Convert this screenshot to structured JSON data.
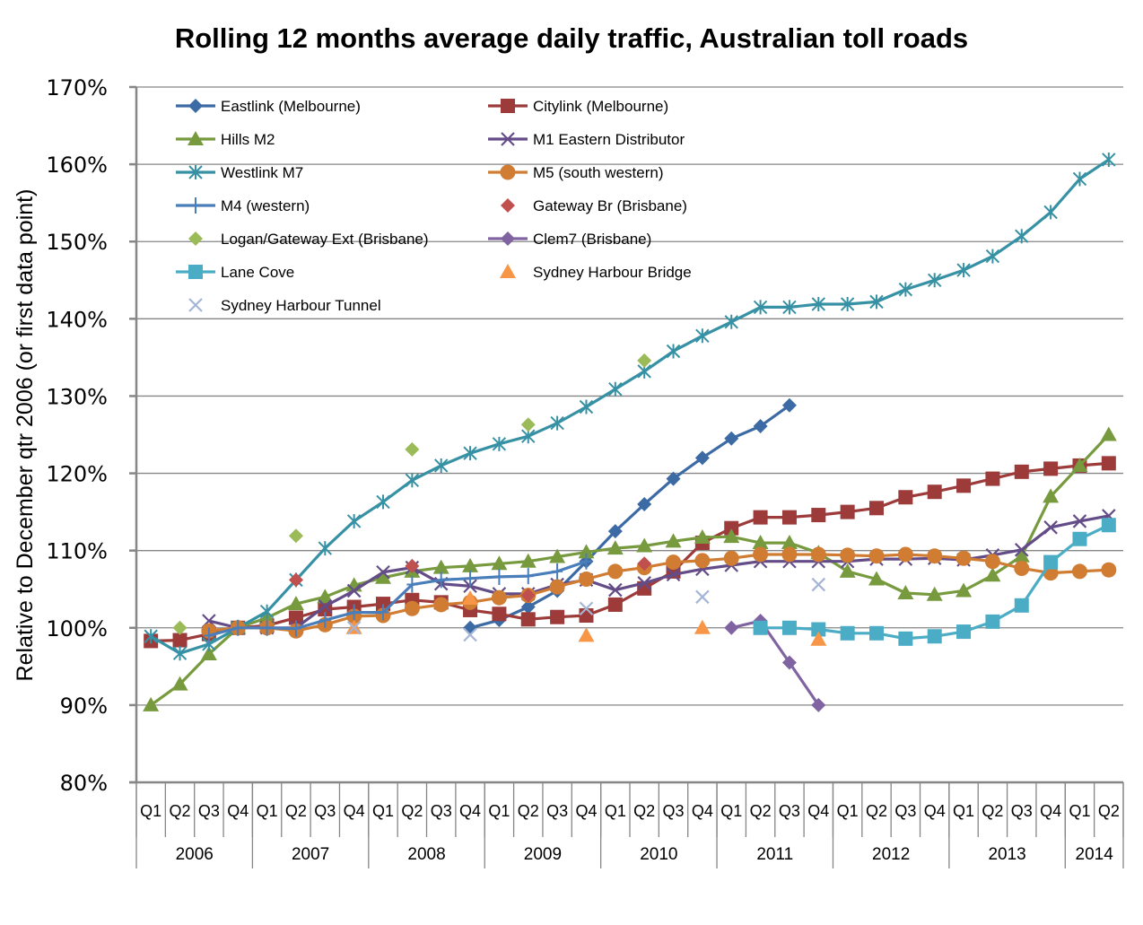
{
  "chart_data": {
    "type": "line",
    "title": "Rolling 12 months average daily traffic, Australian toll roads",
    "xlabel": "",
    "ylabel": "Relative to December  qtr 2006 (or first data point)",
    "ylim": [
      80,
      170
    ],
    "yticks": [
      "80%",
      "90%",
      "100%",
      "110%",
      "120%",
      "130%",
      "140%",
      "150%",
      "160%",
      "170%"
    ],
    "ytick_values": [
      80,
      90,
      100,
      110,
      120,
      130,
      140,
      150,
      160,
      170
    ],
    "grid": true,
    "legend_position": "top-left",
    "x": [
      "2006 Q1",
      "2006 Q2",
      "2006 Q3",
      "2006 Q4",
      "2007 Q1",
      "2007 Q2",
      "2007 Q3",
      "2007 Q4",
      "2008 Q1",
      "2008 Q2",
      "2008 Q3",
      "2008 Q4",
      "2009 Q1",
      "2009 Q2",
      "2009 Q3",
      "2009 Q4",
      "2010 Q1",
      "2010 Q2",
      "2010 Q3",
      "2010 Q4",
      "2011 Q1",
      "2011 Q2",
      "2011 Q3",
      "2011 Q4",
      "2012 Q1",
      "2012 Q2",
      "2012 Q3",
      "2012 Q4",
      "2013 Q1",
      "2013 Q2",
      "2013 Q3",
      "2013 Q4",
      "2014 Q1",
      "2014 Q2"
    ],
    "quarter_labels": [
      "Q1",
      "Q2",
      "Q3",
      "Q4",
      "Q1",
      "Q2",
      "Q3",
      "Q4",
      "Q1",
      "Q2",
      "Q3",
      "Q4",
      "Q1",
      "Q2",
      "Q3",
      "Q4",
      "Q1",
      "Q2",
      "Q3",
      "Q4",
      "Q1",
      "Q2",
      "Q3",
      "Q4",
      "Q1",
      "Q2",
      "Q3",
      "Q4",
      "Q1",
      "Q2",
      "Q3",
      "Q4",
      "Q1",
      "Q2"
    ],
    "year_groups": [
      {
        "label": "2006",
        "quarters": 4
      },
      {
        "label": "2007",
        "quarters": 4
      },
      {
        "label": "2008",
        "quarters": 4
      },
      {
        "label": "2009",
        "quarters": 4
      },
      {
        "label": "2010",
        "quarters": 4
      },
      {
        "label": "2011",
        "quarters": 4
      },
      {
        "label": "2012",
        "quarters": 4
      },
      {
        "label": "2013",
        "quarters": 4
      },
      {
        "label": "2014",
        "quarters": 2
      }
    ],
    "series": [
      {
        "name": "Eastlink (Melbourne)",
        "color": "#3c6aa5",
        "marker": "diamond",
        "line": true,
        "values": [
          null,
          null,
          null,
          null,
          null,
          null,
          null,
          null,
          null,
          null,
          null,
          100.0,
          101.0,
          102.7,
          104.8,
          108.6,
          112.5,
          116.0,
          119.3,
          122.0,
          124.5,
          126.1,
          128.8,
          null,
          null,
          null,
          null,
          null,
          null,
          null,
          null,
          null,
          null,
          null
        ]
      },
      {
        "name": "Citylink (Melbourne)",
        "color": "#9c3b3a",
        "marker": "square",
        "line": true,
        "values": [
          98.3,
          98.4,
          99.2,
          100.0,
          100.3,
          101.3,
          102.4,
          102.7,
          103.1,
          103.6,
          103.3,
          102.3,
          101.8,
          101.1,
          101.4,
          101.6,
          103.0,
          105.1,
          107.3,
          111.0,
          112.9,
          114.3,
          114.3,
          114.6,
          115.0,
          115.5,
          116.9,
          117.6,
          118.4,
          119.3,
          120.2,
          120.6,
          121.0,
          121.3
        ]
      },
      {
        "name": "Hills M2",
        "color": "#779a3f",
        "marker": "triangle",
        "line": true,
        "values": [
          90.0,
          92.7,
          96.6,
          100.0,
          101.3,
          103.1,
          104.0,
          105.5,
          106.5,
          107.3,
          107.8,
          108.0,
          108.3,
          108.6,
          109.2,
          109.8,
          110.3,
          110.6,
          111.2,
          111.7,
          111.8,
          111.0,
          111.0,
          109.7,
          107.3,
          106.3,
          104.5,
          104.3,
          104.8,
          106.8,
          109.3,
          117.0,
          121.0,
          125.0
        ]
      },
      {
        "name": "M1 Eastern Distributor",
        "color": "#634c87",
        "marker": "x",
        "line": true,
        "values": [
          null,
          null,
          100.9,
          100.0,
          100.0,
          100.0,
          102.8,
          104.8,
          107.2,
          107.8,
          105.7,
          105.4,
          104.4,
          104.4,
          105.6,
          106.2,
          104.9,
          105.8,
          106.9,
          107.6,
          108.1,
          108.6,
          108.6,
          108.6,
          108.6,
          108.9,
          108.9,
          109.0,
          108.8,
          109.4,
          110.1,
          113.0,
          113.8,
          114.5
        ]
      },
      {
        "name": "Westlink M7",
        "color": "#3791a4",
        "marker": "star",
        "line": true,
        "values": [
          98.9,
          96.7,
          97.9,
          100.0,
          102.1,
          106.2,
          110.3,
          113.8,
          116.3,
          119.1,
          121.0,
          122.6,
          123.8,
          124.8,
          126.5,
          128.6,
          130.9,
          133.2,
          135.8,
          137.8,
          139.6,
          141.5,
          141.5,
          141.9,
          141.9,
          142.2,
          143.8,
          145.0,
          146.3,
          148.1,
          150.7,
          153.8,
          158.1,
          160.6
        ]
      },
      {
        "name": "M5 (south western)",
        "color": "#d07d33",
        "marker": "circle",
        "line": true,
        "values": [
          null,
          null,
          99.6,
          100.0,
          100.0,
          99.6,
          100.4,
          101.5,
          101.6,
          102.5,
          103.0,
          103.3,
          103.9,
          104.2,
          105.3,
          106.3,
          107.3,
          107.8,
          108.5,
          108.7,
          109.0,
          109.5,
          109.5,
          109.5,
          109.4,
          109.3,
          109.5,
          109.3,
          109.0,
          108.6,
          107.7,
          107.1,
          107.3,
          107.5
        ]
      },
      {
        "name": "M4 (western)",
        "color": "#4a7ebb",
        "marker": "plus",
        "line": true,
        "values": [
          null,
          null,
          99.0,
          100.0,
          100.0,
          99.9,
          101.0,
          102.0,
          102.0,
          105.6,
          106.2,
          106.4,
          106.6,
          106.7,
          107.3,
          108.6,
          null,
          null,
          null,
          null,
          null,
          null,
          null,
          null,
          null,
          null,
          null,
          null,
          null,
          null,
          null,
          null,
          null,
          null
        ]
      },
      {
        "name": "Gateway Br (Brisbane)",
        "color": "#c0504d",
        "marker": "diamond",
        "line": false,
        "values": [
          null,
          null,
          null,
          null,
          null,
          106.2,
          null,
          null,
          null,
          108.0,
          null,
          null,
          null,
          104.2,
          null,
          null,
          null,
          108.3,
          null,
          null,
          null,
          null,
          null,
          null,
          null,
          null,
          null,
          null,
          null,
          null,
          null,
          null,
          null,
          null
        ]
      },
      {
        "name": "Logan/Gateway Ext (Brisbane)",
        "color": "#9bbb59",
        "marker": "diamond",
        "line": false,
        "values": [
          null,
          100.0,
          null,
          null,
          null,
          111.9,
          null,
          null,
          null,
          123.1,
          null,
          null,
          null,
          126.3,
          null,
          null,
          null,
          134.6,
          null,
          null,
          null,
          null,
          null,
          null,
          null,
          null,
          null,
          null,
          null,
          null,
          null,
          null,
          null,
          null
        ]
      },
      {
        "name": "Clem7 (Brisbane)",
        "color": "#8064a2",
        "marker": "diamond",
        "line": true,
        "values": [
          null,
          null,
          null,
          null,
          null,
          null,
          null,
          null,
          null,
          null,
          null,
          null,
          null,
          null,
          null,
          null,
          null,
          null,
          null,
          null,
          100.0,
          100.9,
          95.5,
          90.0,
          null,
          null,
          null,
          null,
          null,
          null,
          null,
          null,
          null,
          null
        ]
      },
      {
        "name": "Lane Cove",
        "color": "#4bacc6",
        "marker": "square",
        "line": true,
        "values": [
          null,
          null,
          null,
          null,
          null,
          null,
          null,
          null,
          null,
          null,
          null,
          null,
          null,
          null,
          null,
          null,
          null,
          null,
          null,
          null,
          null,
          100.0,
          100.0,
          99.8,
          99.3,
          99.3,
          98.6,
          98.9,
          99.5,
          100.8,
          102.9,
          108.5,
          111.5,
          113.3
        ]
      },
      {
        "name": "Sydney Harbour Bridge",
        "color": "#f79646",
        "marker": "triangle",
        "line": false,
        "values": [
          null,
          null,
          null,
          null,
          null,
          null,
          null,
          100.0,
          null,
          null,
          null,
          103.8,
          null,
          null,
          null,
          99.0,
          null,
          null,
          null,
          100.0,
          null,
          null,
          null,
          98.5,
          null,
          null,
          null,
          null,
          null,
          null,
          null,
          null,
          null,
          null
        ]
      },
      {
        "name": "Sydney Harbour Tunnel",
        "color": "#a5b5d7",
        "marker": "x",
        "line": false,
        "values": [
          null,
          null,
          null,
          null,
          null,
          null,
          null,
          100.0,
          null,
          null,
          null,
          99.1,
          null,
          null,
          null,
          102.5,
          null,
          null,
          null,
          104.0,
          null,
          null,
          null,
          105.6,
          null,
          null,
          null,
          null,
          null,
          null,
          null,
          null,
          null,
          null
        ]
      }
    ]
  }
}
